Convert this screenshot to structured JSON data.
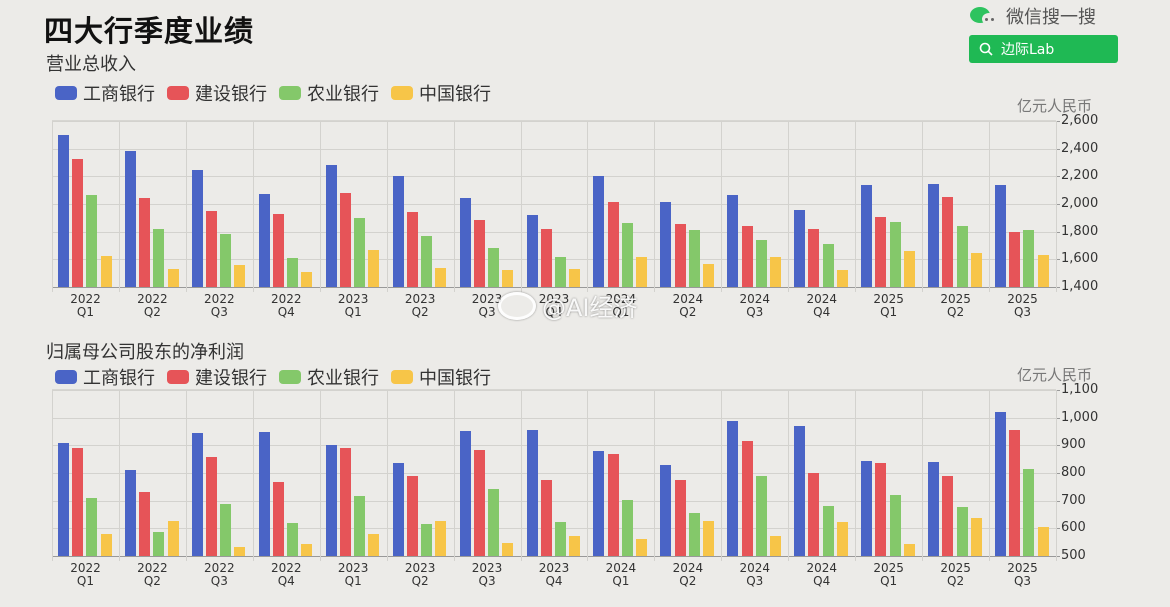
{
  "header": {
    "title": "四大行季度业绩",
    "wechat_label": "微信搜一搜",
    "search_button_label": "边际Lab"
  },
  "watermark": "@AI经济",
  "colors": {
    "icbc": "#4a64c6",
    "ccb": "#e65458",
    "abc": "#84c86a",
    "boc": "#f7c548",
    "wechat_green": "#1fb954"
  },
  "legend": [
    "工商银行",
    "建设银行",
    "农业银行",
    "中国银行"
  ],
  "chart_data": [
    {
      "type": "bar",
      "title": "营业总收入",
      "ylabel": "亿元人民币",
      "xlabel": "",
      "ylim": [
        1400,
        2600
      ],
      "yticks": [
        "1,400",
        "1,600",
        "1,800",
        "2,000",
        "2,200",
        "2,400",
        "2,600"
      ],
      "grid": true,
      "legend_position": "top-left",
      "categories": [
        "2022 Q1",
        "2022 Q2",
        "2022 Q3",
        "2022 Q4",
        "2023 Q1",
        "2023 Q2",
        "2023 Q3",
        "2023 Q4",
        "2024 Q1",
        "2024 Q2",
        "2024 Q3",
        "2024 Q4",
        "2025 Q1",
        "2025 Q2",
        "2025 Q3"
      ],
      "category_years": [
        "2022",
        "2022",
        "2022",
        "2022",
        "2023",
        "2023",
        "2023",
        "2023",
        "2024",
        "2024",
        "2024",
        "2024",
        "2025",
        "2025",
        "2025"
      ],
      "category_quarters": [
        "Q1",
        "Q2",
        "Q3",
        "Q4",
        "Q1",
        "Q2",
        "Q3",
        "Q4",
        "Q1",
        "Q2",
        "Q3",
        "Q4",
        "Q1",
        "Q2",
        "Q3"
      ],
      "series": [
        {
          "name": "工商银行",
          "values": [
            2500,
            2386,
            2249,
            2073,
            2280,
            2206,
            2044,
            1924,
            2206,
            2011,
            2066,
            1960,
            2134,
            2148,
            2134
          ]
        },
        {
          "name": "建设银行",
          "values": [
            2329,
            2044,
            1953,
            1926,
            2078,
            1939,
            1888,
            1816,
            2013,
            1856,
            1838,
            1816,
            1907,
            2049,
            1801
          ]
        },
        {
          "name": "农业银行",
          "values": [
            2066,
            1816,
            1782,
            1609,
            1900,
            1770,
            1683,
            1618,
            1866,
            1813,
            1739,
            1710,
            1871,
            1838,
            1813
          ]
        },
        {
          "name": "中国银行",
          "values": [
            1621,
            1527,
            1556,
            1510,
            1664,
            1540,
            1524,
            1531,
            1614,
            1567,
            1616,
            1524,
            1657,
            1647,
            1628
          ]
        }
      ]
    },
    {
      "type": "bar",
      "title": "归属母公司股东的净利润",
      "ylabel": "亿元人民币",
      "xlabel": "",
      "ylim": [
        500,
        1100
      ],
      "yticks": [
        "500",
        "600",
        "700",
        "800",
        "900",
        "1,000",
        "1,100"
      ],
      "grid": true,
      "legend_position": "top-left",
      "categories": [
        "2022 Q1",
        "2022 Q2",
        "2022 Q3",
        "2022 Q4",
        "2023 Q1",
        "2023 Q2",
        "2023 Q3",
        "2023 Q4",
        "2024 Q1",
        "2024 Q2",
        "2024 Q3",
        "2024 Q4",
        "2025 Q1",
        "2025 Q2",
        "2025 Q3"
      ],
      "category_years": [
        "2022",
        "2022",
        "2022",
        "2022",
        "2023",
        "2023",
        "2023",
        "2023",
        "2024",
        "2024",
        "2024",
        "2024",
        "2025",
        "2025",
        "2025"
      ],
      "category_quarters": [
        "Q1",
        "Q2",
        "Q3",
        "Q4",
        "Q1",
        "Q2",
        "Q3",
        "Q4",
        "Q1",
        "Q2",
        "Q3",
        "Q4",
        "Q1",
        "Q2",
        "Q3"
      ],
      "series": [
        {
          "name": "工商银行",
          "values": [
            909,
            812,
            946,
            949,
            903,
            838,
            951,
            955,
            878,
            829,
            989,
            971,
            844,
            841,
            1021
          ]
        },
        {
          "name": "建设银行",
          "values": [
            891,
            732,
            859,
            769,
            891,
            788,
            882,
            774,
            869,
            776,
            917,
            801,
            835,
            789,
            957
          ]
        },
        {
          "name": "农业银行",
          "values": [
            710,
            585,
            688,
            618,
            718,
            617,
            743,
            622,
            703,
            655,
            788,
            680,
            722,
            677,
            815
          ]
        },
        {
          "name": "中国银行",
          "values": [
            580,
            626,
            533,
            545,
            578,
            626,
            548,
            571,
            561,
            627,
            572,
            623,
            545,
            636,
            604
          ]
        }
      ]
    }
  ]
}
